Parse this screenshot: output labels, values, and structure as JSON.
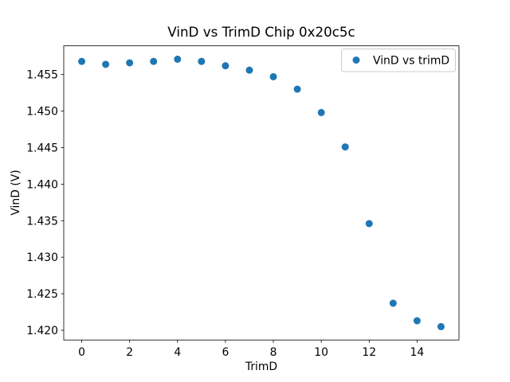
{
  "chart_data": {
    "type": "scatter",
    "title": "VinD vs TrimD Chip 0x20c5c",
    "xlabel": "TrimD",
    "ylabel": "VinD (V)",
    "legend": {
      "label": "VinD vs trimD",
      "position": "upper right",
      "border_color": "#cccccc",
      "background": "#ffffff"
    },
    "x": [
      0,
      1,
      2,
      3,
      4,
      5,
      6,
      7,
      8,
      9,
      10,
      11,
      12,
      13,
      14,
      15
    ],
    "y": [
      1.4568,
      1.4564,
      1.4566,
      1.4568,
      1.4571,
      1.4568,
      1.4562,
      1.4556,
      1.4547,
      1.453,
      1.4498,
      1.4451,
      1.4346,
      1.4237,
      1.4213,
      1.4205
    ],
    "xlim": [
      -0.75,
      15.75
    ],
    "ylim": [
      1.41867,
      1.45893
    ],
    "xtick_labels": [
      "0",
      "2",
      "4",
      "6",
      "8",
      "10",
      "12",
      "14"
    ],
    "ytick_labels": [
      "1.420",
      "1.425",
      "1.430",
      "1.435",
      "1.440",
      "1.445",
      "1.450",
      "1.455"
    ],
    "grid": false,
    "marker_color": "#1f77b4",
    "spine_color": "#000000",
    "background": "#ffffff"
  }
}
